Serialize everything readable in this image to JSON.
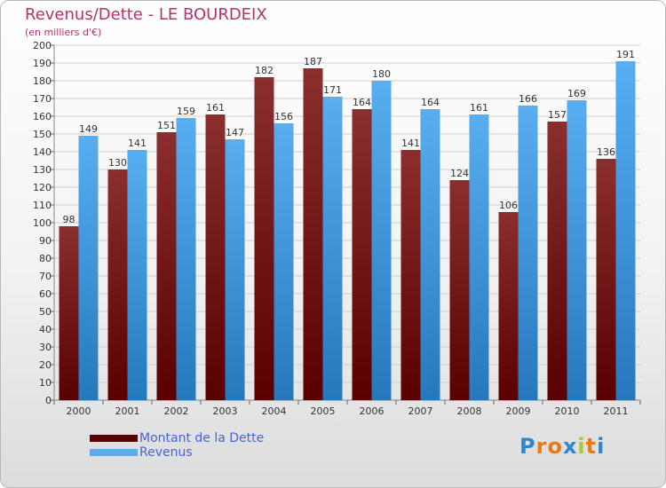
{
  "title": "Revenus/Dette - LE BOURDEIX",
  "subtitle": "(en milliers d'€)",
  "logo": {
    "text": "Proxiti",
    "letter_colors": [
      "#2e86d0",
      "#e8791a",
      "#e8791a",
      "#2e86d0",
      "#a7c93b",
      "#e8791a",
      "#2e86d0"
    ]
  },
  "colors": {
    "dette_top": "#8a2e2e",
    "dette_bottom": "#5a0000",
    "revenus_top": "#58aef0",
    "revenus_bottom": "#2678bd",
    "title": "#b5316a",
    "legend_text": "#4a63d6"
  },
  "chart_data": {
    "type": "bar",
    "title": "Revenus/Dette - LE BOURDEIX",
    "subtitle": "(en milliers d'€)",
    "categories": [
      "2000",
      "2001",
      "2002",
      "2003",
      "2004",
      "2005",
      "2006",
      "2007",
      "2008",
      "2009",
      "2010",
      "2011"
    ],
    "series": [
      {
        "name": "Montant de la Dette",
        "values": [
          98,
          130,
          151,
          161,
          182,
          187,
          164,
          141,
          124,
          106,
          157,
          136
        ],
        "color": "#6b1515"
      },
      {
        "name": "Revenus",
        "values": [
          149,
          141,
          159,
          147,
          156,
          171,
          180,
          164,
          161,
          166,
          169,
          191
        ],
        "color": "#3b95dd"
      }
    ],
    "ylim": [
      0,
      200
    ],
    "ytick_step": 10,
    "grid": true,
    "data_labels": true,
    "legend_position": "bottom-left"
  }
}
